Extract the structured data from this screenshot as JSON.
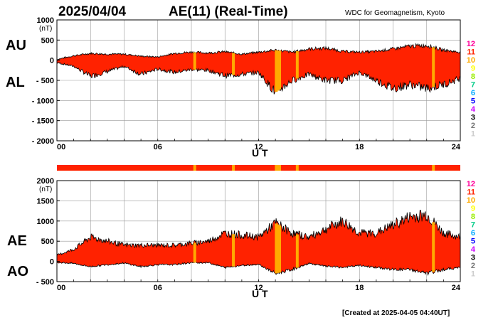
{
  "date": "2025/04/04",
  "title": "AE(11) (Real-Time)",
  "source": "WDC for Geomagnetism, Kyoto",
  "footer": "[Created at 2025-04-05 04:40UT]",
  "unit": "(nT)",
  "colors": {
    "fill": "#ff2200",
    "fill_stroke": "#000000",
    "bar_base": "#ff2200",
    "bar_highlight": "#ffaa00",
    "grid": "#999999"
  },
  "legend": {
    "levels": [
      "12",
      "11",
      "10",
      "9",
      "8",
      "7",
      "6",
      "5",
      "4",
      "3",
      "2",
      "1"
    ],
    "colors": [
      "#ff0099",
      "#ff2200",
      "#ffaa00",
      "#ffff00",
      "#99ee00",
      "#00cc88",
      "#00aaff",
      "#0000ff",
      "#cc00ff",
      "#000000",
      "#777777",
      "#cccccc"
    ]
  },
  "chart_data": [
    {
      "type": "area",
      "name": "AU-AL",
      "series_labels": [
        "AU",
        "AL"
      ],
      "xlabel": "U T",
      "ylabel": "(nT)",
      "x_ticks": [
        0,
        6,
        12,
        18,
        24
      ],
      "x_tick_labels": [
        "00",
        "06",
        "12",
        "18",
        "24"
      ],
      "xlim": [
        0,
        24
      ],
      "ylim": [
        -2000,
        1000
      ],
      "y_ticks": [
        1000,
        500,
        0,
        -500,
        -1000,
        -1500,
        -2000
      ],
      "y_tick_labels": [
        "1000",
        "500",
        "0",
        "- 500",
        "- 1000",
        "- 1500",
        "- 2000"
      ],
      "x": [
        0,
        1,
        2,
        3,
        4,
        5,
        6,
        7,
        8,
        9,
        10,
        11,
        12,
        13,
        14,
        15,
        16,
        17,
        18,
        19,
        20,
        21,
        22,
        23,
        24
      ],
      "au": [
        20,
        110,
        170,
        150,
        150,
        100,
        80,
        170,
        200,
        180,
        210,
        150,
        200,
        250,
        200,
        280,
        300,
        220,
        200,
        220,
        280,
        350,
        370,
        250,
        200
      ],
      "al": [
        -60,
        -150,
        -400,
        -280,
        -150,
        -350,
        -220,
        -300,
        -230,
        -250,
        -380,
        -350,
        -300,
        -800,
        -500,
        -350,
        -500,
        -500,
        -300,
        -500,
        -700,
        -600,
        -700,
        -600,
        -450
      ]
    },
    {
      "type": "area",
      "name": "AE-AO",
      "series_labels": [
        "AE",
        "AO"
      ],
      "xlabel": "U T",
      "ylabel": "(nT)",
      "x_ticks": [
        0,
        6,
        12,
        18,
        24
      ],
      "x_tick_labels": [
        "00",
        "06",
        "12",
        "18",
        "24"
      ],
      "xlim": [
        0,
        24
      ],
      "ylim": [
        -500,
        2000
      ],
      "y_ticks": [
        2000,
        1500,
        1000,
        500,
        0,
        -500
      ],
      "y_tick_labels": [
        "2000",
        "1500",
        "1000",
        "500",
        "0",
        "- 500"
      ],
      "x": [
        0,
        1,
        2,
        3,
        4,
        5,
        6,
        7,
        8,
        9,
        10,
        11,
        12,
        13,
        14,
        15,
        16,
        17,
        18,
        19,
        20,
        21,
        22,
        23,
        24
      ],
      "ae": [
        150,
        300,
        600,
        500,
        400,
        400,
        400,
        400,
        450,
        500,
        700,
        650,
        600,
        950,
        700,
        600,
        800,
        1000,
        700,
        700,
        900,
        1100,
        1150,
        700,
        600
      ],
      "ao": [
        -20,
        -50,
        -130,
        -80,
        -40,
        -130,
        -80,
        -80,
        -30,
        -30,
        -150,
        -100,
        -70,
        -300,
        -200,
        -50,
        -120,
        -150,
        -100,
        -150,
        -200,
        -200,
        -300,
        -200,
        -150
      ]
    }
  ],
  "activity_bar": {
    "highlight_hours": [
      8.2,
      10.5,
      13.05,
      13.15,
      13.25,
      14.3,
      22.4
    ]
  }
}
